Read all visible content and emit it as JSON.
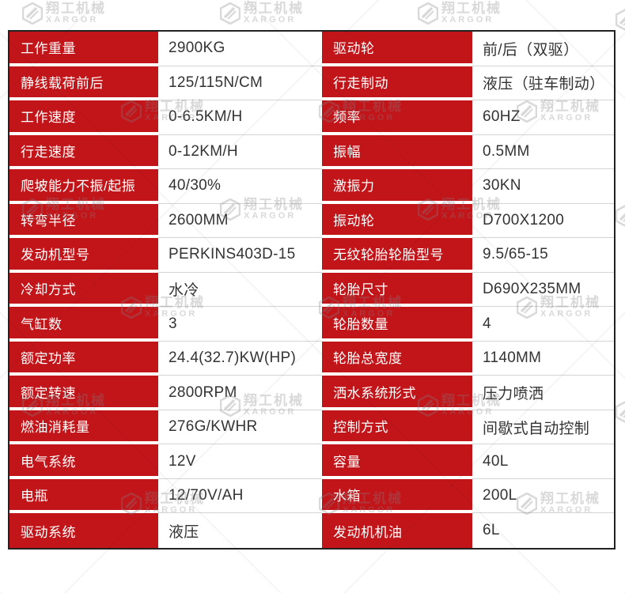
{
  "watermark": {
    "brand_cn": "翔工机械",
    "brand_en": "XARGOR"
  },
  "colors": {
    "label_bg": "#c2151a",
    "label_text": "#ffffff",
    "value_text": "#333333",
    "table_border": "#222222",
    "row_divider": "#d4d4d4"
  },
  "spec_table": {
    "left_rows": [
      {
        "label": "工作重量",
        "value": "2900KG"
      },
      {
        "label": "静线载荷前后",
        "value": "125/115N/CM"
      },
      {
        "label": "工作速度",
        "value": "0-6.5KM/H"
      },
      {
        "label": "行走速度",
        "value": "0-12KM/H"
      },
      {
        "label": "爬坡能力不振/起振",
        "value": "40/30%"
      },
      {
        "label": "转弯半径",
        "value": "2600MM"
      },
      {
        "label": "发动机型号",
        "value": "PERKINS403D-15"
      },
      {
        "label": "冷却方式",
        "value": "水冷"
      },
      {
        "label": "气缸数",
        "value": "3"
      },
      {
        "label": "额定功率",
        "value": "24.4(32.7)KW(HP)"
      },
      {
        "label": "额定转速",
        "value": "2800RPM"
      },
      {
        "label": "燃油消耗量",
        "value": "276G/KWHR"
      },
      {
        "label": "电气系统",
        "value": "12V"
      },
      {
        "label": "电瓶",
        "value": "12/70V/AH"
      },
      {
        "label": "驱动系统",
        "value": "液压"
      }
    ],
    "right_rows": [
      {
        "label": "驱动轮",
        "value": "前/后（双驱）"
      },
      {
        "label": "行走制动",
        "value": "液压（驻车制动）"
      },
      {
        "label": "频率",
        "value": "60HZ"
      },
      {
        "label": "振幅",
        "value": "0.5MM"
      },
      {
        "label": "激振力",
        "value": "30KN"
      },
      {
        "label": "振动轮",
        "value": "D700X1200"
      },
      {
        "label": "无纹轮胎轮胎型号",
        "value": "9.5/65-15"
      },
      {
        "label": "轮胎尺寸",
        "value": "D690X235MM"
      },
      {
        "label": "轮胎数量",
        "value": "4"
      },
      {
        "label": "轮胎总宽度",
        "value": "1140MM"
      },
      {
        "label": "洒水系统形式",
        "value": "压力喷洒"
      },
      {
        "label": "控制方式",
        "value": "间歇式自动控制"
      },
      {
        "label": "容量",
        "value": "40L"
      },
      {
        "label": "水箱",
        "value": "200L"
      },
      {
        "label": "发动机机油",
        "value": "6L"
      }
    ]
  }
}
